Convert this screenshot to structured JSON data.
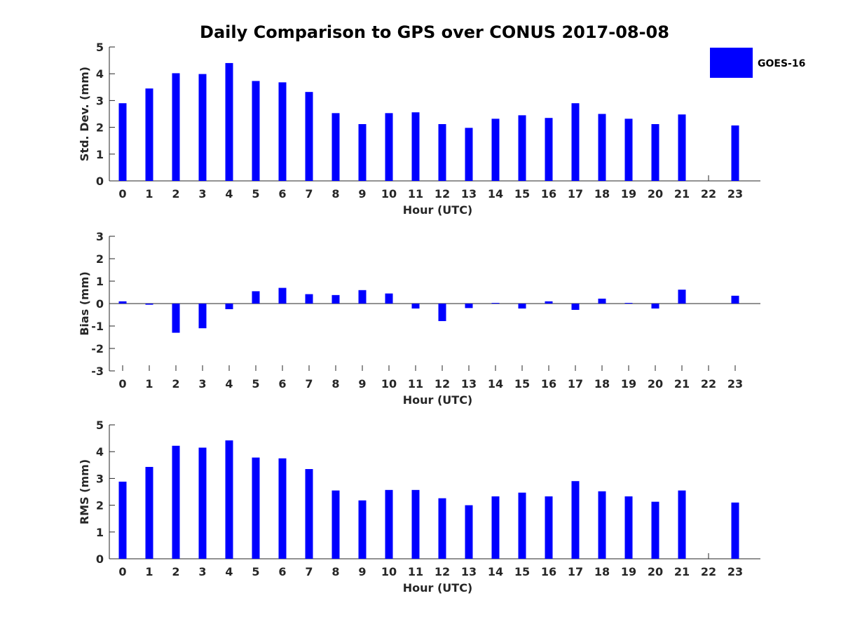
{
  "figure": {
    "title": "Daily Comparison to GPS over CONUS 2017-08-08",
    "bar_color": "#0000ff",
    "legend": {
      "label": "GOES-16",
      "placement": "top-right"
    }
  },
  "chart_data": [
    {
      "id": "std",
      "type": "bar",
      "title": "Daily Comparison to GPS over CONUS 2017-08-08",
      "xlabel": "Hour (UTC)",
      "ylabel": "Std. Dev. (mm)",
      "ylim": [
        0,
        5
      ],
      "yticks": [
        "0",
        "1",
        "2",
        "3",
        "4",
        "5"
      ],
      "categories": [
        "0",
        "1",
        "2",
        "3",
        "4",
        "5",
        "6",
        "7",
        "8",
        "9",
        "10",
        "11",
        "12",
        "13",
        "14",
        "15",
        "16",
        "17",
        "18",
        "19",
        "20",
        "21",
        "22",
        "23"
      ],
      "series": [
        {
          "name": "GOES-16",
          "values": [
            2.9,
            3.45,
            4.02,
            3.99,
            4.4,
            3.73,
            3.68,
            3.32,
            2.53,
            2.12,
            2.53,
            2.56,
            2.12,
            1.98,
            2.32,
            2.45,
            2.35,
            2.9,
            2.5,
            2.32,
            2.12,
            2.48,
            null,
            2.07
          ]
        }
      ]
    },
    {
      "id": "bias",
      "type": "bar",
      "xlabel": "Hour (UTC)",
      "ylabel": "Bias (mm)",
      "ylim": [
        -3,
        3
      ],
      "yticks": [
        "-3",
        "-2",
        "-1",
        "0",
        "1",
        "2",
        "3"
      ],
      "categories": [
        "0",
        "1",
        "2",
        "3",
        "4",
        "5",
        "6",
        "7",
        "8",
        "9",
        "10",
        "11",
        "12",
        "13",
        "14",
        "15",
        "16",
        "17",
        "18",
        "19",
        "20",
        "21",
        "22",
        "23"
      ],
      "series": [
        {
          "name": "GOES-16",
          "values": [
            0.1,
            -0.05,
            -1.3,
            -1.1,
            -0.25,
            0.55,
            0.7,
            0.42,
            0.38,
            0.6,
            0.45,
            -0.22,
            -0.78,
            -0.2,
            0.03,
            -0.22,
            0.1,
            -0.28,
            0.22,
            0.03,
            -0.22,
            0.62,
            null,
            0.35
          ]
        }
      ]
    },
    {
      "id": "rms",
      "type": "bar",
      "xlabel": "Hour (UTC)",
      "ylabel": "RMS (mm)",
      "ylim": [
        0,
        5
      ],
      "yticks": [
        "0",
        "1",
        "2",
        "3",
        "4",
        "5"
      ],
      "categories": [
        "0",
        "1",
        "2",
        "3",
        "4",
        "5",
        "6",
        "7",
        "8",
        "9",
        "10",
        "11",
        "12",
        "13",
        "14",
        "15",
        "16",
        "17",
        "18",
        "19",
        "20",
        "21",
        "22",
        "23"
      ],
      "series": [
        {
          "name": "GOES-16",
          "values": [
            2.88,
            3.43,
            4.22,
            4.15,
            4.42,
            3.78,
            3.75,
            3.35,
            2.55,
            2.18,
            2.57,
            2.57,
            2.26,
            2.0,
            2.33,
            2.47,
            2.33,
            2.9,
            2.52,
            2.33,
            2.13,
            2.55,
            null,
            2.1
          ]
        }
      ]
    }
  ]
}
